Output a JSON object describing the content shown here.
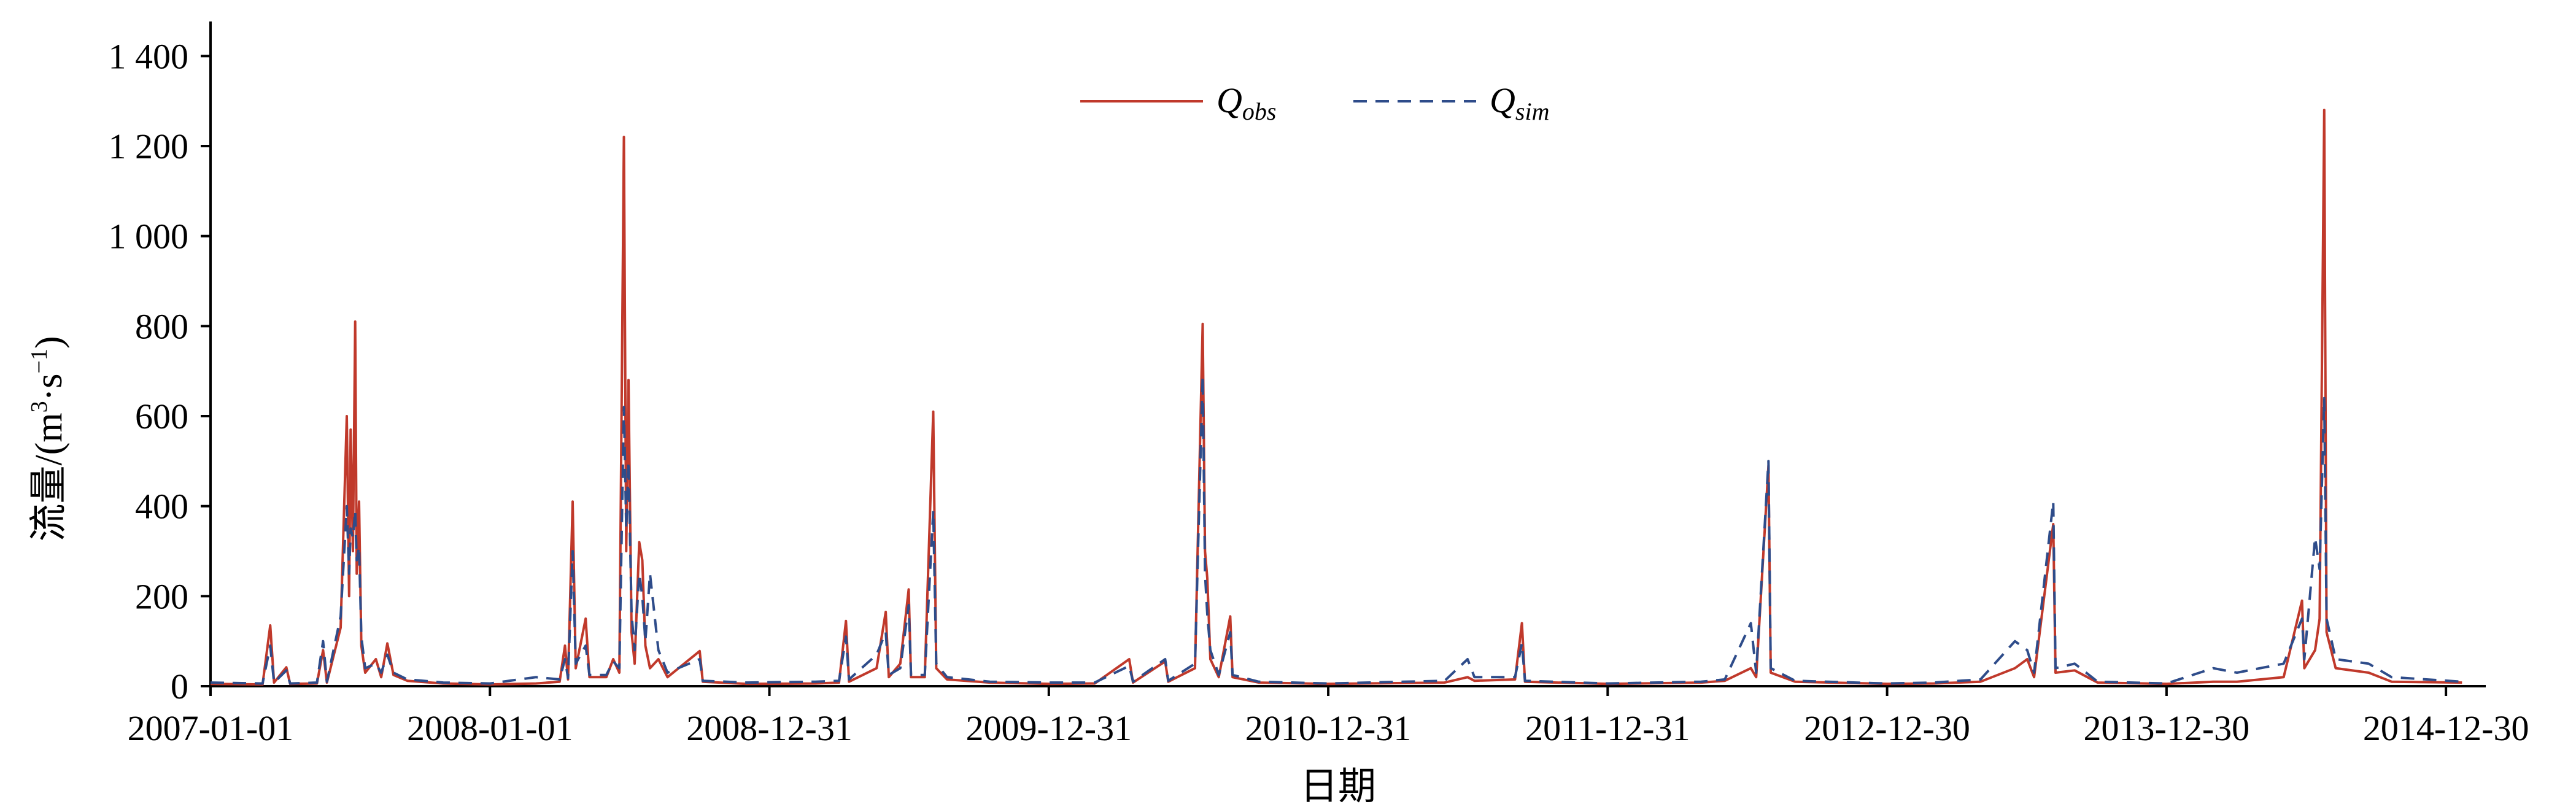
{
  "chart_data": {
    "type": "line",
    "title": "",
    "xlabel": "日期",
    "ylabel": "流量/(m³·s⁻¹)",
    "ylabel_parts": {
      "main": "流量/(m",
      "sup1": "3",
      "mid": "·s",
      "sup2": "−1",
      "end": ")"
    },
    "x_range": [
      "2007-01-01",
      "2015-02-20"
    ],
    "ylim": [
      0,
      1470
    ],
    "y_ticks": [
      0,
      200,
      400,
      600,
      800,
      1000,
      1200,
      1400
    ],
    "y_tick_labels": [
      "0",
      "200",
      "400",
      "600",
      "800",
      "1 000",
      "1 200",
      "1 400"
    ],
    "x_ticks": [
      "2007-01-01",
      "2008-01-01",
      "2008-12-31",
      "2009-12-31",
      "2010-12-31",
      "2011-12-31",
      "2012-12-30",
      "2013-12-30",
      "2014-12-30"
    ],
    "grid": false,
    "legend_position": "top-center",
    "series": [
      {
        "name": "Qobs",
        "name_main": "Q",
        "name_sub": "obs",
        "color": "#c0392b",
        "style": "solid",
        "points": [
          [
            "2007-01-01",
            5
          ],
          [
            "2007-03-10",
            4
          ],
          [
            "2007-03-20",
            135
          ],
          [
            "2007-03-25",
            8
          ],
          [
            "2007-04-10",
            42
          ],
          [
            "2007-04-15",
            5
          ],
          [
            "2007-05-20",
            6
          ],
          [
            "2007-05-28",
            80
          ],
          [
            "2007-06-02",
            8
          ],
          [
            "2007-06-20",
            130
          ],
          [
            "2007-06-28",
            600
          ],
          [
            "2007-07-01",
            200
          ],
          [
            "2007-07-03",
            570
          ],
          [
            "2007-07-06",
            300
          ],
          [
            "2007-07-09",
            810
          ],
          [
            "2007-07-11",
            250
          ],
          [
            "2007-07-14",
            410
          ],
          [
            "2007-07-17",
            90
          ],
          [
            "2007-07-22",
            30
          ],
          [
            "2007-08-05",
            60
          ],
          [
            "2007-08-12",
            20
          ],
          [
            "2007-08-20",
            95
          ],
          [
            "2007-08-28",
            25
          ],
          [
            "2007-09-15",
            12
          ],
          [
            "2007-11-01",
            6
          ],
          [
            "2008-01-01",
            4
          ],
          [
            "2008-03-01",
            6
          ],
          [
            "2008-04-01",
            10
          ],
          [
            "2008-04-08",
            90
          ],
          [
            "2008-04-12",
            15
          ],
          [
            "2008-04-18",
            410
          ],
          [
            "2008-04-22",
            40
          ],
          [
            "2008-05-05",
            150
          ],
          [
            "2008-05-10",
            20
          ],
          [
            "2008-06-01",
            20
          ],
          [
            "2008-06-10",
            60
          ],
          [
            "2008-06-18",
            30
          ],
          [
            "2008-06-24",
            1220
          ],
          [
            "2008-06-27",
            300
          ],
          [
            "2008-06-30",
            680
          ],
          [
            "2008-07-04",
            120
          ],
          [
            "2008-07-08",
            50
          ],
          [
            "2008-07-14",
            320
          ],
          [
            "2008-07-18",
            280
          ],
          [
            "2008-07-22",
            90
          ],
          [
            "2008-07-28",
            40
          ],
          [
            "2008-08-08",
            60
          ],
          [
            "2008-08-20",
            20
          ],
          [
            "2008-10-01",
            78
          ],
          [
            "2008-10-05",
            10
          ],
          [
            "2008-12-01",
            5
          ],
          [
            "2009-03-01",
            6
          ],
          [
            "2009-04-01",
            8
          ],
          [
            "2009-04-10",
            145
          ],
          [
            "2009-04-14",
            10
          ],
          [
            "2009-05-20",
            40
          ],
          [
            "2009-06-01",
            165
          ],
          [
            "2009-06-05",
            20
          ],
          [
            "2009-06-20",
            50
          ],
          [
            "2009-07-01",
            215
          ],
          [
            "2009-07-04",
            20
          ],
          [
            "2009-07-22",
            20
          ],
          [
            "2009-08-02",
            610
          ],
          [
            "2009-08-06",
            40
          ],
          [
            "2009-08-20",
            15
          ],
          [
            "2009-10-15",
            8
          ],
          [
            "2010-01-01",
            5
          ],
          [
            "2010-03-01",
            6
          ],
          [
            "2010-04-15",
            60
          ],
          [
            "2010-04-20",
            8
          ],
          [
            "2010-06-01",
            55
          ],
          [
            "2010-06-05",
            10
          ],
          [
            "2010-07-10",
            40
          ],
          [
            "2010-07-20",
            805
          ],
          [
            "2010-07-23",
            300
          ],
          [
            "2010-07-26",
            240
          ],
          [
            "2010-07-30",
            60
          ],
          [
            "2010-08-10",
            20
          ],
          [
            "2010-08-25",
            155
          ],
          [
            "2010-08-28",
            20
          ],
          [
            "2010-10-01",
            8
          ],
          [
            "2010-12-31",
            5
          ],
          [
            "2011-06-01",
            8
          ],
          [
            "2011-07-01",
            20
          ],
          [
            "2011-07-10",
            12
          ],
          [
            "2011-09-01",
            15
          ],
          [
            "2011-09-10",
            140
          ],
          [
            "2011-09-14",
            10
          ],
          [
            "2011-12-31",
            5
          ],
          [
            "2012-05-01",
            8
          ],
          [
            "2012-06-01",
            12
          ],
          [
            "2012-07-05",
            40
          ],
          [
            "2012-07-12",
            20
          ],
          [
            "2012-07-28",
            490
          ],
          [
            "2012-07-31",
            30
          ],
          [
            "2012-09-01",
            10
          ],
          [
            "2012-12-30",
            5
          ],
          [
            "2013-03-01",
            6
          ],
          [
            "2013-05-01",
            10
          ],
          [
            "2013-06-15",
            40
          ],
          [
            "2013-07-01",
            60
          ],
          [
            "2013-07-10",
            20
          ],
          [
            "2013-08-04",
            360
          ],
          [
            "2013-08-07",
            30
          ],
          [
            "2013-09-01",
            35
          ],
          [
            "2013-10-01",
            8
          ],
          [
            "2013-12-30",
            5
          ],
          [
            "2014-03-01",
            10
          ],
          [
            "2014-04-01",
            10
          ],
          [
            "2014-06-01",
            20
          ],
          [
            "2014-06-25",
            190
          ],
          [
            "2014-06-28",
            40
          ],
          [
            "2014-07-12",
            80
          ],
          [
            "2014-07-18",
            150
          ],
          [
            "2014-07-24",
            1280
          ],
          [
            "2014-07-27",
            120
          ],
          [
            "2014-08-08",
            40
          ],
          [
            "2014-09-20",
            30
          ],
          [
            "2014-10-20",
            10
          ],
          [
            "2015-01-20",
            8
          ]
        ]
      },
      {
        "name": "Qsim",
        "name_main": "Q",
        "name_sub": "sim",
        "color": "#2e4c8a",
        "style": "dashed",
        "points": [
          [
            "2007-01-01",
            8
          ],
          [
            "2007-03-10",
            6
          ],
          [
            "2007-03-20",
            90
          ],
          [
            "2007-03-25",
            8
          ],
          [
            "2007-04-10",
            35
          ],
          [
            "2007-04-15",
            6
          ],
          [
            "2007-05-20",
            8
          ],
          [
            "2007-05-28",
            100
          ],
          [
            "2007-06-02",
            10
          ],
          [
            "2007-06-20",
            155
          ],
          [
            "2007-06-28",
            400
          ],
          [
            "2007-07-01",
            250
          ],
          [
            "2007-07-03",
            350
          ],
          [
            "2007-07-06",
            330
          ],
          [
            "2007-07-09",
            390
          ],
          [
            "2007-07-11",
            280
          ],
          [
            "2007-07-14",
            310
          ],
          [
            "2007-07-17",
            110
          ],
          [
            "2007-07-22",
            40
          ],
          [
            "2007-08-05",
            50
          ],
          [
            "2007-08-12",
            30
          ],
          [
            "2007-08-20",
            70
          ],
          [
            "2007-08-28",
            30
          ],
          [
            "2007-09-15",
            15
          ],
          [
            "2007-11-01",
            8
          ],
          [
            "2008-01-01",
            6
          ],
          [
            "2008-03-01",
            20
          ],
          [
            "2008-04-01",
            15
          ],
          [
            "2008-04-08",
            60
          ],
          [
            "2008-04-12",
            18
          ],
          [
            "2008-04-18",
            300
          ],
          [
            "2008-04-22",
            50
          ],
          [
            "2008-05-05",
            90
          ],
          [
            "2008-05-10",
            25
          ],
          [
            "2008-06-01",
            25
          ],
          [
            "2008-06-10",
            55
          ],
          [
            "2008-06-18",
            40
          ],
          [
            "2008-06-24",
            620
          ],
          [
            "2008-06-27",
            350
          ],
          [
            "2008-06-30",
            500
          ],
          [
            "2008-07-04",
            160
          ],
          [
            "2008-07-08",
            80
          ],
          [
            "2008-07-14",
            250
          ],
          [
            "2008-07-18",
            200
          ],
          [
            "2008-07-22",
            100
          ],
          [
            "2008-07-28",
            250
          ],
          [
            "2008-08-08",
            80
          ],
          [
            "2008-08-20",
            30
          ],
          [
            "2008-10-01",
            60
          ],
          [
            "2008-10-05",
            12
          ],
          [
            "2008-12-01",
            8
          ],
          [
            "2009-03-01",
            10
          ],
          [
            "2009-04-01",
            12
          ],
          [
            "2009-04-10",
            110
          ],
          [
            "2009-04-14",
            15
          ],
          [
            "2009-05-20",
            70
          ],
          [
            "2009-06-01",
            120
          ],
          [
            "2009-06-05",
            25
          ],
          [
            "2009-06-20",
            40
          ],
          [
            "2009-07-01",
            180
          ],
          [
            "2009-07-04",
            25
          ],
          [
            "2009-07-22",
            25
          ],
          [
            "2009-08-02",
            390
          ],
          [
            "2009-08-06",
            50
          ],
          [
            "2009-08-20",
            20
          ],
          [
            "2009-10-15",
            10
          ],
          [
            "2010-01-01",
            8
          ],
          [
            "2010-03-01",
            8
          ],
          [
            "2010-04-15",
            45
          ],
          [
            "2010-04-20",
            10
          ],
          [
            "2010-06-01",
            60
          ],
          [
            "2010-06-05",
            12
          ],
          [
            "2010-07-10",
            50
          ],
          [
            "2010-07-20",
            690
          ],
          [
            "2010-07-23",
            250
          ],
          [
            "2010-07-26",
            160
          ],
          [
            "2010-07-30",
            80
          ],
          [
            "2010-08-10",
            25
          ],
          [
            "2010-08-25",
            120
          ],
          [
            "2010-08-28",
            25
          ],
          [
            "2010-10-01",
            10
          ],
          [
            "2010-12-31",
            6
          ],
          [
            "2011-06-01",
            12
          ],
          [
            "2011-07-01",
            60
          ],
          [
            "2011-07-10",
            20
          ],
          [
            "2011-09-01",
            20
          ],
          [
            "2011-09-10",
            95
          ],
          [
            "2011-09-14",
            12
          ],
          [
            "2011-12-31",
            6
          ],
          [
            "2012-05-01",
            10
          ],
          [
            "2012-06-01",
            15
          ],
          [
            "2012-07-05",
            140
          ],
          [
            "2012-07-12",
            30
          ],
          [
            "2012-07-28",
            500
          ],
          [
            "2012-07-31",
            40
          ],
          [
            "2012-09-01",
            12
          ],
          [
            "2012-12-30",
            6
          ],
          [
            "2013-03-01",
            8
          ],
          [
            "2013-05-01",
            15
          ],
          [
            "2013-06-15",
            100
          ],
          [
            "2013-07-01",
            80
          ],
          [
            "2013-07-10",
            30
          ],
          [
            "2013-08-04",
            410
          ],
          [
            "2013-08-07",
            40
          ],
          [
            "2013-09-01",
            50
          ],
          [
            "2013-10-01",
            10
          ],
          [
            "2013-12-30",
            6
          ],
          [
            "2014-03-01",
            40
          ],
          [
            "2014-04-01",
            30
          ],
          [
            "2014-06-01",
            50
          ],
          [
            "2014-06-25",
            150
          ],
          [
            "2014-06-28",
            60
          ],
          [
            "2014-07-12",
            330
          ],
          [
            "2014-07-18",
            260
          ],
          [
            "2014-07-24",
            640
          ],
          [
            "2014-07-27",
            150
          ],
          [
            "2014-08-08",
            60
          ],
          [
            "2014-09-20",
            50
          ],
          [
            "2014-10-20",
            20
          ],
          [
            "2015-01-20",
            10
          ]
        ]
      }
    ]
  }
}
